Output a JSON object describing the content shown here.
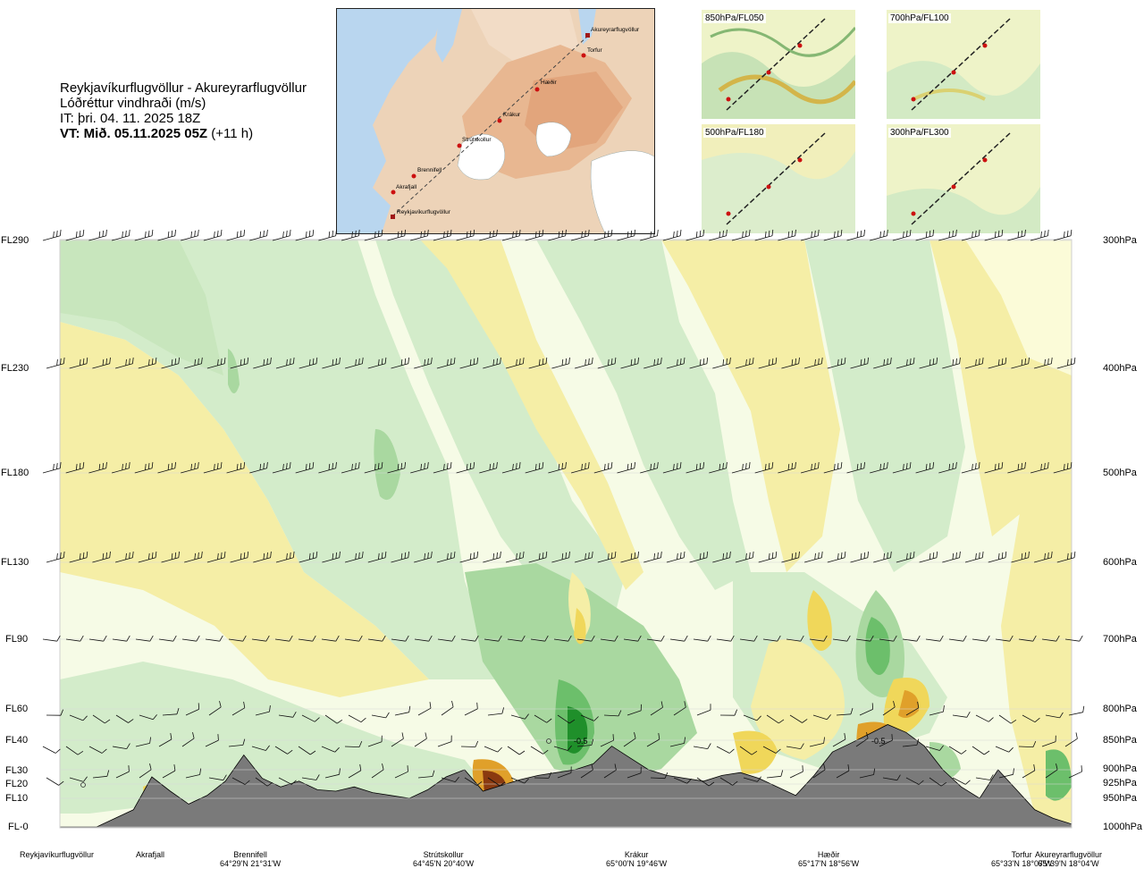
{
  "header": {
    "route": "Reykjavíkurflugvöllur - Akureyrarflugvöllur",
    "variable": "Lóðréttur vindhraði (m/s)",
    "it_line": "IT: þri. 04. 11. 2025 18Z",
    "vt_bold": "VT: Mið. 05.11.2025 05Z",
    "vt_rest": " (+11 h)"
  },
  "map": {
    "waypoints": [
      "Akureyrarflugvöllur",
      "Torfur",
      "Hæðir",
      "Krákur",
      "Strútskollur",
      "Brennifell",
      "Akrafjall",
      "Reykjavíkurflugvöllur"
    ]
  },
  "thumbnails": [
    {
      "label": "850hPa/FL050"
    },
    {
      "label": "700hPa/FL100"
    },
    {
      "label": "500hPa/FL180"
    },
    {
      "label": "300hPa/FL300"
    }
  ],
  "colors": {
    "strong_down": "#1f8f2a",
    "down": "#6cbf6b",
    "weak_down": "#a9d8a0",
    "very_weak_down": "#d3ecca",
    "neutral": "#f6fbe6",
    "weak_up": "#f5eea6",
    "up": "#f0d75a",
    "strong_up": "#e0a02a",
    "very_strong_up": "#8a3a10",
    "terrain": "#7a7a7a"
  },
  "chart_data": {
    "type": "heatmap",
    "title": "Lóðréttur vindhraði (m/s)",
    "y_left_levels": [
      "FL290",
      "FL230",
      "FL180",
      "FL130",
      "FL90",
      "FL60",
      "FL40",
      "FL30",
      "FL20",
      "FL10",
      "FL-0"
    ],
    "y_right_levels": [
      "300hPa",
      "400hPa",
      "500hPa",
      "600hPa",
      "700hPa",
      "800hPa",
      "850hPa",
      "900hPa",
      "925hPa",
      "950hPa",
      "1000hPa"
    ],
    "locations": [
      {
        "name": "Reykjavíkurflugvöllur",
        "coord": ""
      },
      {
        "name": "Akrafjall",
        "coord": ""
      },
      {
        "name": "Brennifell",
        "coord": "64°29'N 21°31'W"
      },
      {
        "name": "Strútskollur",
        "coord": "64°45'N 20°40'W"
      },
      {
        "name": "Krákur",
        "coord": "65°00'N 19°46'W"
      },
      {
        "name": "Hæðir",
        "coord": "65°17'N 18°56'W"
      },
      {
        "name": "Torfur",
        "coord": "65°33'N 18°07'W"
      },
      {
        "name": "Akureyrarflugvöllur",
        "coord": "65°39'N 18°04'W"
      }
    ],
    "annotations": [
      "-0.5",
      "-0.5"
    ],
    "terrain_profile_fl": [
      0,
      0,
      0,
      0.3,
      0.6,
      2.5,
      1.5,
      0.8,
      1.2,
      2.2,
      3.5,
      2.4,
      1.8,
      2.2,
      1.6,
      1.5,
      1.8,
      1.4,
      1.2,
      1.0,
      1.6,
      2.5,
      3.0,
      1.5,
      1.9,
      2.3,
      2.6,
      2.8,
      3.0,
      3.2,
      3.8,
      3.4,
      3.0,
      2.6,
      2.4,
      2.2,
      2.6,
      2.8,
      2.4,
      1.8,
      1.2,
      2.6,
      3.6,
      3.9,
      4.4,
      5.0,
      4.5,
      3.8,
      3.0,
      1.8,
      1.0,
      3.0,
      1.6,
      0.6,
      0.3,
      0.1
    ]
  }
}
